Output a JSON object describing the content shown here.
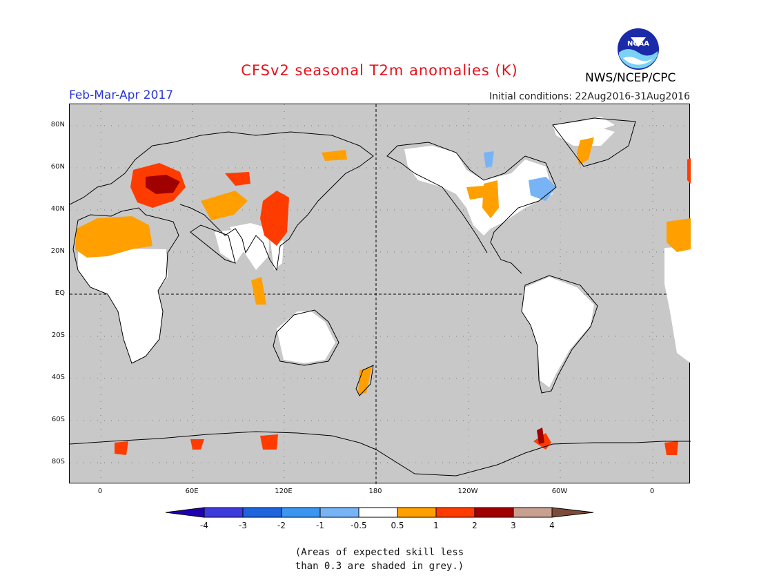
{
  "header": {
    "title": "CFSv2 seasonal T2m anomalies (K)",
    "period": "Feb-Mar-Apr 2017",
    "initial_conditions": "Initial conditions: 22Aug2016-31Aug2016",
    "agency": "NWS/NCEP/CPC",
    "logo_text": "NOAA",
    "logo_icon": "noaa-logo-icon"
  },
  "map": {
    "y_labels": [
      "80N",
      "60N",
      "40N",
      "20N",
      "EQ",
      "20S",
      "40S",
      "60S",
      "80S"
    ],
    "x_labels": [
      "0",
      "60E",
      "120E",
      "180",
      "120W",
      "60W",
      "0"
    ],
    "colors": {
      "background_low_skill": "#c8c8c8",
      "neutral": "#ffffff",
      "warm_0_5_1": "#ffa000",
      "warm_1_2": "#ff3c00",
      "warm_2_3": "#a00000"
    }
  },
  "colorbar": {
    "labels": [
      "-4",
      "-3",
      "-2",
      "-1",
      "-0.5",
      "0.5",
      "1",
      "2",
      "3",
      "4"
    ],
    "colors": [
      "#1e00b4",
      "#3c3cdc",
      "#1e64dc",
      "#3c96f0",
      "#78b4f5",
      "#ffffff",
      "#ffa000",
      "#ff3c00",
      "#a00000",
      "#c8a090",
      "#7c4a3a"
    ]
  },
  "note": {
    "line1": "(Areas of expected skill less",
    "line2": "than 0.3 are shaded in grey.)"
  }
}
